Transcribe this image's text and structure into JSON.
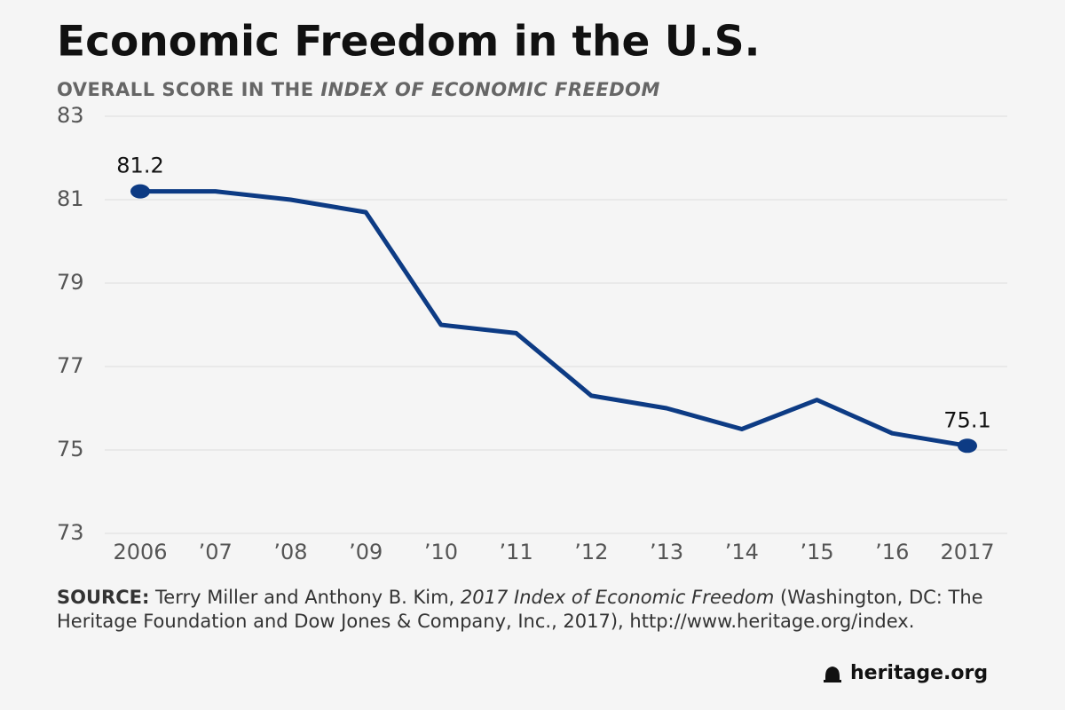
{
  "chart_data": {
    "type": "line",
    "title": "Economic Freedom in the U.S.",
    "subtitle": "OVERALL SCORE IN THE ",
    "subtitle_emphasis": "INDEX OF ECONOMIC FREEDOM",
    "categories": [
      "2006",
      "’07",
      "’08",
      "’09",
      "’10",
      "’11",
      "’12",
      "’13",
      "’14",
      "’15",
      "’16",
      "2017"
    ],
    "values": [
      81.2,
      81.2,
      81.0,
      80.7,
      78.0,
      77.8,
      76.3,
      76.0,
      75.5,
      76.2,
      75.4,
      75.1
    ],
    "labeled_points": [
      0,
      11
    ],
    "color": "#0d3b84",
    "ylim": [
      73,
      83
    ],
    "yticks": [
      73,
      75,
      77,
      79,
      81,
      83
    ],
    "grid": true,
    "source_label": "SOURCE:",
    "source_text": " Terry Miller and Anthony B. Kim, ",
    "source_title": "2017 Index of Economic Freedom",
    "source_rest": " (Washington, DC: The Heritage Foundation and Dow Jones & Company, Inc., 2017), http://www.heritage.org/index.",
    "brand": "heritage.org"
  }
}
